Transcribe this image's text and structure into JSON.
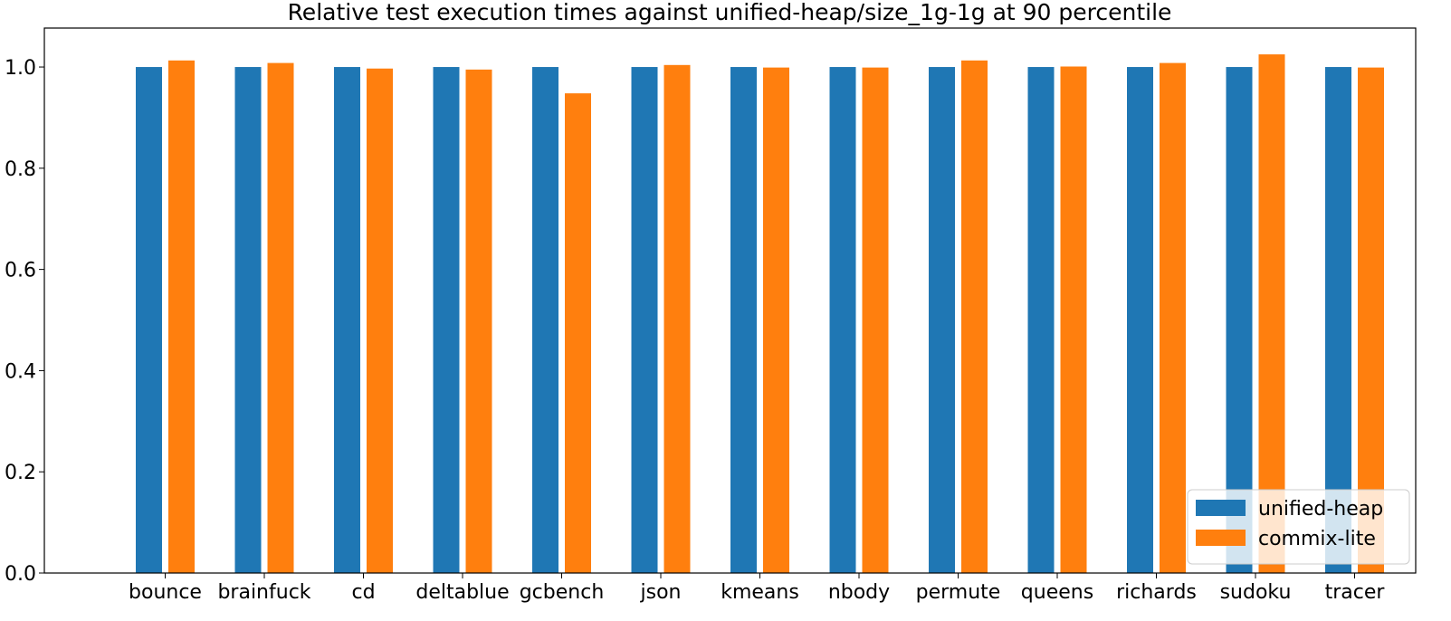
{
  "chart_data": {
    "type": "bar",
    "title": "Relative test execution times against unified-heap/size_1g-1g at 90 percentile",
    "xlabel": "",
    "ylabel": "",
    "categories": [
      "bounce",
      "brainfuck",
      "cd",
      "deltablue",
      "gcbench",
      "json",
      "kmeans",
      "nbody",
      "permute",
      "queens",
      "richards",
      "sudoku",
      "tracer"
    ],
    "series": [
      {
        "name": "unified-heap",
        "color": "#1f77b4",
        "values": [
          1.0,
          1.0,
          1.0,
          1.0,
          1.0,
          1.0,
          1.0,
          1.0,
          1.0,
          1.0,
          1.0,
          1.0,
          1.0
        ]
      },
      {
        "name": "commix-lite",
        "color": "#ff7f0e",
        "values": [
          1.013,
          1.008,
          0.997,
          0.995,
          0.948,
          1.004,
          0.999,
          0.999,
          1.013,
          1.001,
          1.008,
          1.025,
          0.999
        ]
      }
    ],
    "ylim": [
      0,
      1.077
    ],
    "yticks": [
      "0.0",
      "0.2",
      "0.4",
      "0.6",
      "0.8",
      "1.0"
    ],
    "grid": false,
    "legend_position": "bottom-right"
  }
}
